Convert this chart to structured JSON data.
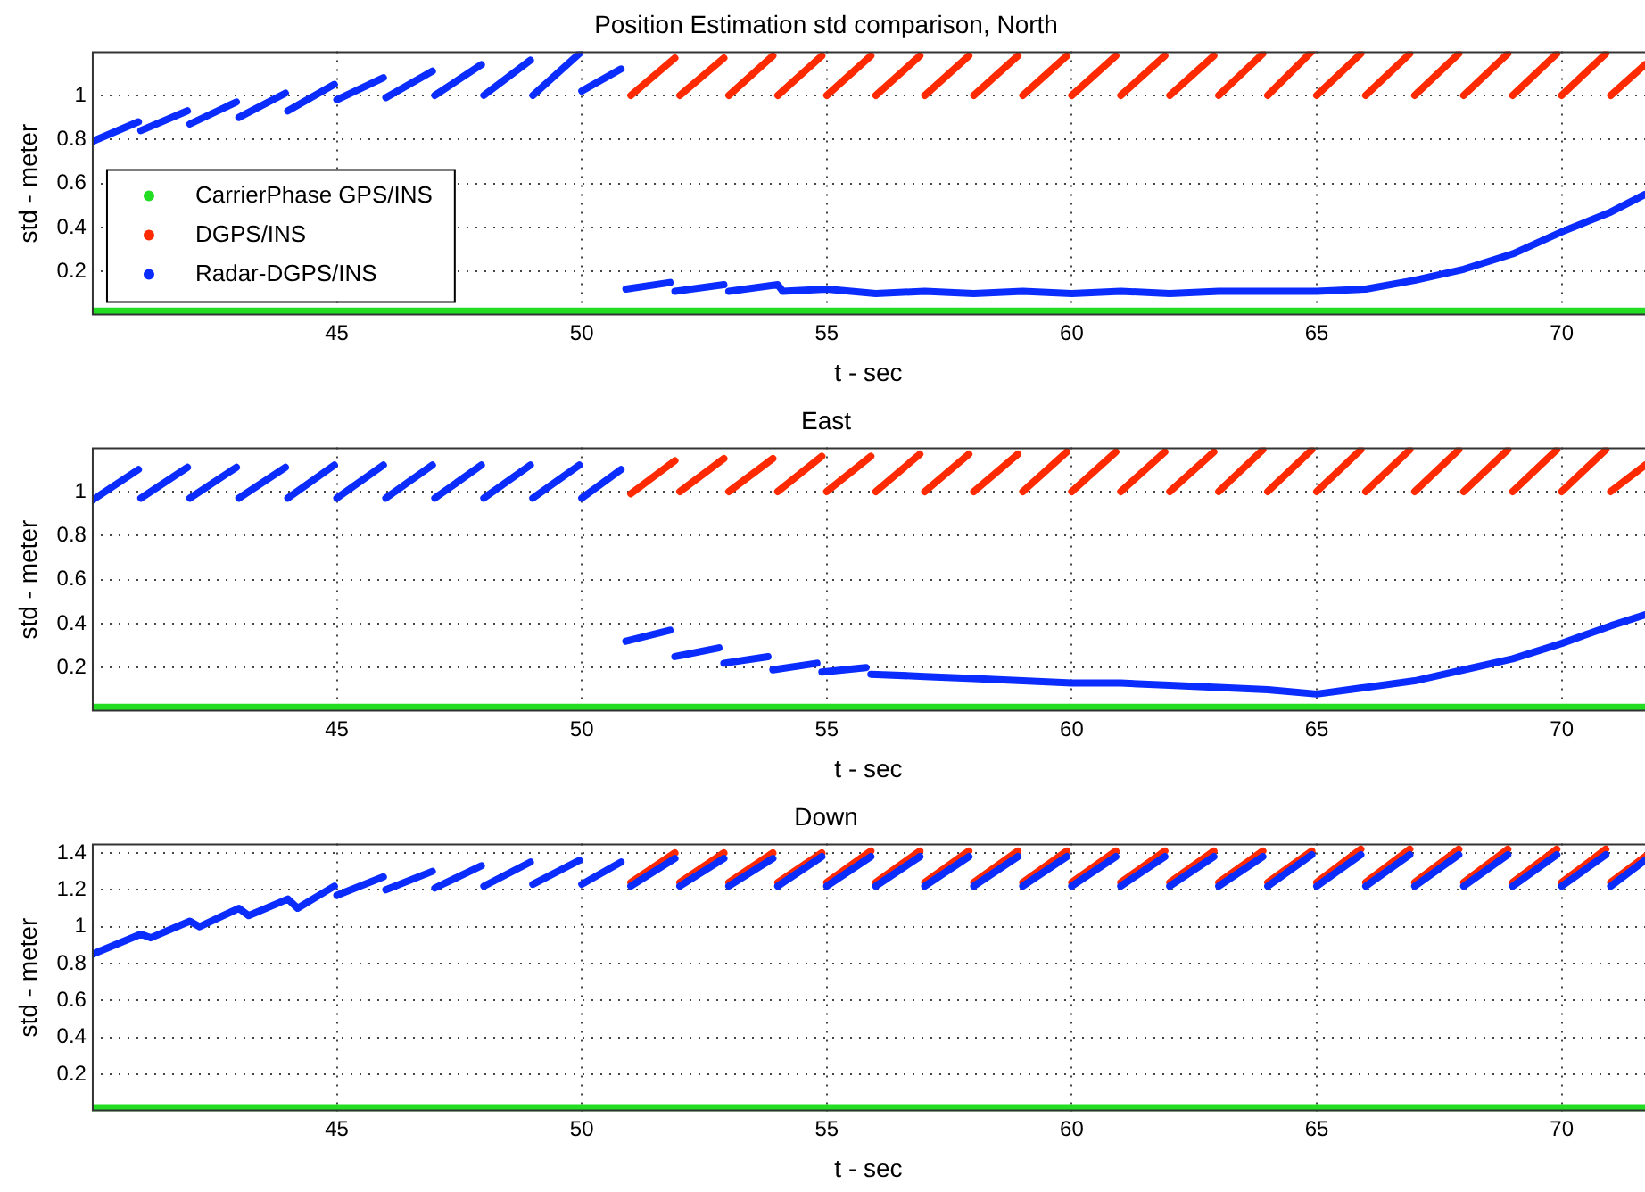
{
  "chart_data": [
    {
      "type": "line",
      "title": "Position Estimation std comparison, North",
      "xlabel": "t - sec",
      "ylabel": "std - meter",
      "xlim": [
        40,
        71.7
      ],
      "xticks": [
        45,
        50,
        55,
        60,
        65,
        70
      ],
      "ylim": [
        0,
        1.2
      ],
      "yticks": [
        0.2,
        0.4,
        0.6,
        0.8,
        1
      ],
      "grid": true,
      "legend": "bottom left",
      "marker": "none",
      "line_style": "solid",
      "series": [
        {
          "name": "CarrierPhase GPS/INS",
          "color": "#22dd22",
          "x": [
            40,
            50,
            60,
            71.7
          ],
          "values": [
            0.02,
            0.02,
            0.02,
            0.02
          ]
        },
        {
          "name": "DGPS/INS",
          "color": "#ff2a00",
          "x": [
            51,
            51.9,
            51.95,
            52,
            52.9,
            52.95,
            53,
            53.9,
            53.95,
            54,
            54.9,
            54.95,
            55,
            55.9,
            55.95,
            56,
            56.9,
            56.95,
            57,
            57.9,
            57.95,
            58,
            58.9,
            58.95,
            59,
            59.9,
            59.95,
            60,
            60.9,
            60.95,
            61,
            61.9,
            61.95,
            62,
            62.9,
            62.95,
            63,
            63.9,
            63.95,
            64,
            64.9,
            64.95,
            65,
            65.9,
            65.95,
            66,
            66.9,
            66.95,
            67,
            67.9,
            67.95,
            68,
            68.9,
            68.95,
            69,
            69.9,
            69.95,
            70,
            70.9,
            70.95,
            71,
            71.7
          ],
          "values": [
            1.0,
            1.17,
            null,
            1.0,
            1.17,
            null,
            1.0,
            1.18,
            null,
            1.0,
            1.18,
            null,
            1.0,
            1.18,
            null,
            1.0,
            1.18,
            null,
            1.0,
            1.18,
            null,
            1.0,
            1.18,
            null,
            1.0,
            1.18,
            null,
            1.0,
            1.18,
            null,
            1.0,
            1.18,
            null,
            1.0,
            1.18,
            null,
            1.0,
            1.19,
            null,
            1.0,
            1.2,
            null,
            1.0,
            1.19,
            null,
            1.0,
            1.19,
            null,
            1.0,
            1.19,
            null,
            1.0,
            1.19,
            null,
            1.0,
            1.19,
            null,
            1.0,
            1.19,
            null,
            1.0,
            1.14
          ]
        },
        {
          "name": "Radar-DGPS/INS",
          "color": "#0a2cff",
          "x": [
            40,
            40.95,
            40.97,
            41,
            41.95,
            41.97,
            42,
            42.95,
            42.97,
            43,
            43.95,
            43.97,
            44,
            44.95,
            44.97,
            45,
            45.95,
            45.97,
            46,
            46.95,
            46.97,
            47,
            47.95,
            47.97,
            48,
            48.95,
            48.97,
            49,
            49.95,
            49.97,
            50,
            50.8,
            50.85,
            50.9,
            51.8,
            51.85,
            51.9,
            52.9,
            52.95,
            53,
            54,
            54.1,
            55,
            56,
            57,
            58,
            59,
            60,
            61,
            62,
            63,
            64,
            65,
            66,
            67,
            68,
            69,
            70,
            71,
            71.7
          ],
          "values": [
            0.79,
            0.88,
            null,
            0.84,
            0.93,
            null,
            0.87,
            0.97,
            null,
            0.9,
            1.01,
            null,
            0.93,
            1.05,
            null,
            0.98,
            1.08,
            null,
            0.99,
            1.11,
            null,
            1.0,
            1.14,
            null,
            1.0,
            1.16,
            null,
            1.0,
            1.19,
            null,
            1.02,
            1.12,
            null,
            0.12,
            0.15,
            null,
            0.11,
            0.14,
            null,
            0.11,
            0.14,
            0.11,
            0.12,
            0.1,
            0.11,
            0.1,
            0.11,
            0.1,
            0.11,
            0.1,
            0.11,
            0.11,
            0.11,
            0.12,
            0.16,
            0.21,
            0.28,
            0.38,
            0.47,
            0.55
          ]
        }
      ]
    },
    {
      "type": "line",
      "title": "East",
      "xlabel": "t - sec",
      "ylabel": "std - meter",
      "xlim": [
        40,
        71.7
      ],
      "xticks": [
        45,
        50,
        55,
        60,
        65,
        70
      ],
      "ylim": [
        0,
        1.2
      ],
      "yticks": [
        0.2,
        0.4,
        0.6,
        0.8,
        1
      ],
      "grid": true,
      "marker": "none",
      "line_style": "solid",
      "series": [
        {
          "color": "#22dd22",
          "x": [
            40,
            50,
            60,
            71.7
          ],
          "values": [
            0.02,
            0.02,
            0.02,
            0.02
          ]
        },
        {
          "color": "#ff2a00",
          "x": [
            51,
            51.9,
            51.95,
            52,
            52.9,
            52.95,
            53,
            53.9,
            53.95,
            54,
            54.9,
            54.95,
            55,
            55.9,
            55.95,
            56,
            56.9,
            56.95,
            57,
            57.9,
            57.95,
            58,
            58.9,
            58.95,
            59,
            59.9,
            59.95,
            60,
            60.9,
            60.95,
            61,
            61.9,
            61.95,
            62,
            62.9,
            62.95,
            63,
            63.9,
            63.95,
            64,
            64.9,
            64.95,
            65,
            65.9,
            65.95,
            66,
            66.9,
            66.95,
            67,
            67.9,
            67.95,
            68,
            68.9,
            68.95,
            69,
            69.9,
            69.95,
            70,
            70.9,
            70.95,
            71,
            71.7
          ],
          "values": [
            0.99,
            1.14,
            null,
            1.0,
            1.15,
            null,
            1.0,
            1.15,
            null,
            1.0,
            1.16,
            null,
            1.0,
            1.16,
            null,
            1.0,
            1.17,
            null,
            1.0,
            1.17,
            null,
            1.0,
            1.17,
            null,
            1.0,
            1.18,
            null,
            1.0,
            1.18,
            null,
            1.0,
            1.18,
            null,
            1.0,
            1.18,
            null,
            1.0,
            1.19,
            null,
            1.0,
            1.19,
            null,
            1.0,
            1.19,
            null,
            1.0,
            1.19,
            null,
            1.0,
            1.19,
            null,
            1.0,
            1.19,
            null,
            1.0,
            1.19,
            null,
            1.0,
            1.19,
            null,
            1.0,
            1.12
          ]
        },
        {
          "color": "#0a2cff",
          "x": [
            40,
            40.95,
            40.97,
            41,
            41.95,
            41.97,
            42,
            42.95,
            42.97,
            43,
            43.95,
            43.97,
            44,
            44.95,
            44.97,
            45,
            45.95,
            45.97,
            46,
            46.95,
            46.97,
            47,
            47.95,
            47.97,
            48,
            48.95,
            48.97,
            49,
            49.95,
            49.97,
            50,
            50.8,
            50.85,
            50.9,
            51.8,
            51.85,
            51.9,
            52.8,
            52.85,
            52.9,
            53.8,
            53.85,
            53.9,
            54.8,
            54.85,
            54.9,
            55.8,
            55.85,
            55.9,
            57,
            58,
            59,
            60,
            61,
            62,
            63,
            64,
            65,
            66,
            67,
            68,
            69,
            70,
            71,
            71.7
          ],
          "values": [
            0.96,
            1.1,
            null,
            0.97,
            1.11,
            null,
            0.97,
            1.11,
            null,
            0.97,
            1.11,
            null,
            0.97,
            1.12,
            null,
            0.97,
            1.12,
            null,
            0.97,
            1.12,
            null,
            0.97,
            1.12,
            null,
            0.97,
            1.12,
            null,
            0.97,
            1.12,
            null,
            0.97,
            1.1,
            null,
            0.32,
            0.37,
            null,
            0.25,
            0.29,
            null,
            0.22,
            0.25,
            null,
            0.19,
            0.22,
            null,
            0.18,
            0.2,
            null,
            0.17,
            0.16,
            0.15,
            0.14,
            0.13,
            0.13,
            0.12,
            0.11,
            0.1,
            0.08,
            0.11,
            0.14,
            0.19,
            0.24,
            0.31,
            0.39,
            0.44
          ]
        }
      ]
    },
    {
      "type": "line",
      "title": "Down",
      "xlabel": "t - sec",
      "ylabel": "std - meter",
      "xlim": [
        40,
        71.7
      ],
      "xticks": [
        45,
        50,
        55,
        60,
        65,
        70
      ],
      "ylim": [
        0,
        1.45
      ],
      "yticks": [
        0.2,
        0.4,
        0.6,
        0.8,
        1,
        1.2,
        1.4
      ],
      "grid": true,
      "marker": "none",
      "line_style": "solid",
      "series": [
        {
          "color": "#22dd22",
          "x": [
            40,
            50,
            60,
            71.7
          ],
          "values": [
            0.02,
            0.02,
            0.02,
            0.02
          ]
        },
        {
          "color": "#ff2a00",
          "x": [
            51,
            51.9,
            51.95,
            52,
            52.9,
            52.95,
            53,
            53.9,
            53.95,
            54,
            54.9,
            54.95,
            55,
            55.9,
            55.95,
            56,
            56.9,
            56.95,
            57,
            57.9,
            57.95,
            58,
            58.9,
            58.95,
            59,
            59.9,
            59.95,
            60,
            60.9,
            60.95,
            61,
            61.9,
            61.95,
            62,
            62.9,
            62.95,
            63,
            63.9,
            63.95,
            64,
            64.9,
            64.95,
            65,
            65.9,
            65.95,
            66,
            66.9,
            66.95,
            67,
            67.9,
            67.95,
            68,
            68.9,
            68.95,
            69,
            69.9,
            69.95,
            70,
            70.9,
            70.95,
            71,
            71.7
          ],
          "values": [
            1.24,
            1.4,
            null,
            1.24,
            1.4,
            null,
            1.24,
            1.4,
            null,
            1.24,
            1.4,
            null,
            1.24,
            1.41,
            null,
            1.24,
            1.41,
            null,
            1.24,
            1.41,
            null,
            1.24,
            1.41,
            null,
            1.24,
            1.41,
            null,
            1.24,
            1.41,
            null,
            1.24,
            1.41,
            null,
            1.24,
            1.41,
            null,
            1.24,
            1.41,
            null,
            1.24,
            1.41,
            null,
            1.24,
            1.42,
            null,
            1.24,
            1.42,
            null,
            1.24,
            1.42,
            null,
            1.24,
            1.42,
            null,
            1.24,
            1.42,
            null,
            1.24,
            1.42,
            null,
            1.24,
            1.38
          ]
        },
        {
          "color": "#0a2cff",
          "x": [
            40,
            41,
            41.2,
            42,
            42.2,
            43,
            43.2,
            44,
            44.2,
            44.95,
            44.97,
            45,
            45.95,
            45.97,
            46,
            46.95,
            46.97,
            47,
            47.95,
            47.97,
            48,
            48.95,
            48.97,
            49,
            49.95,
            49.97,
            50,
            50.8,
            50.85,
            51,
            51.9,
            51.95,
            52,
            52.9,
            52.95,
            53,
            53.9,
            53.95,
            54,
            54.9,
            54.95,
            55,
            55.9,
            55.95,
            56,
            56.9,
            56.95,
            57,
            57.9,
            57.95,
            58,
            58.9,
            58.95,
            59,
            59.9,
            59.95,
            60,
            60.9,
            60.95,
            61,
            61.9,
            61.95,
            62,
            62.9,
            62.95,
            63,
            63.9,
            63.95,
            64,
            64.9,
            64.95,
            65,
            65.9,
            65.95,
            66,
            66.9,
            66.95,
            67,
            67.9,
            67.95,
            68,
            68.9,
            68.95,
            69,
            69.9,
            69.95,
            70,
            70.9,
            70.95,
            71,
            71.7
          ],
          "values": [
            0.85,
            0.96,
            0.94,
            1.03,
            1.0,
            1.1,
            1.06,
            1.15,
            1.1,
            1.22,
            null,
            1.17,
            1.27,
            null,
            1.2,
            1.3,
            null,
            1.21,
            1.33,
            null,
            1.22,
            1.35,
            null,
            1.23,
            1.36,
            null,
            1.23,
            1.35,
            null,
            1.22,
            1.37,
            null,
            1.22,
            1.37,
            null,
            1.22,
            1.37,
            null,
            1.22,
            1.38,
            null,
            1.22,
            1.38,
            null,
            1.22,
            1.38,
            null,
            1.22,
            1.38,
            null,
            1.22,
            1.38,
            null,
            1.22,
            1.38,
            null,
            1.22,
            1.38,
            null,
            1.22,
            1.38,
            null,
            1.22,
            1.38,
            null,
            1.22,
            1.38,
            null,
            1.22,
            1.39,
            null,
            1.22,
            1.39,
            null,
            1.22,
            1.39,
            null,
            1.22,
            1.39,
            null,
            1.22,
            1.39,
            null,
            1.22,
            1.39,
            null,
            1.22,
            1.39,
            null,
            1.22,
            1.36
          ]
        }
      ]
    }
  ]
}
